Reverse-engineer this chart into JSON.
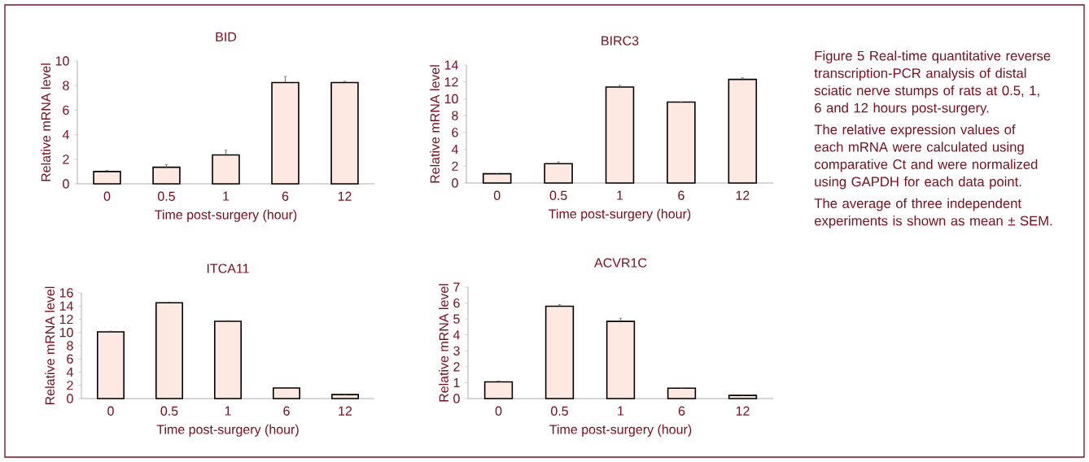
{
  "chart_data": [
    {
      "type": "bar",
      "title": "BID",
      "xlabel": "Time post-surgery (hour)",
      "ylabel": "Relative mRNA level",
      "categories": [
        "0",
        "0.5",
        "1",
        "6",
        "12"
      ],
      "values": [
        1.0,
        1.35,
        2.35,
        8.25,
        8.25
      ],
      "errors": [
        0.1,
        0.2,
        0.4,
        0.5,
        0.1
      ],
      "color": "#fde9e1",
      "ylim": [
        0,
        10
      ],
      "yticks": [
        0,
        2,
        4,
        6,
        8,
        10
      ]
    },
    {
      "type": "bar",
      "title": "BIRC3",
      "xlabel": "Time post-surgery (hour)",
      "ylabel": "Relative mRNA level",
      "categories": [
        "0",
        "0.5",
        "1",
        "6",
        "12"
      ],
      "values": [
        1.1,
        2.3,
        11.4,
        9.6,
        12.3
      ],
      "errors": [
        null,
        0.2,
        0.2,
        null,
        0.2
      ],
      "color": "#fde9e1",
      "ylim": [
        0,
        14
      ],
      "yticks": [
        0,
        2,
        4,
        6,
        8,
        10,
        12,
        14
      ]
    },
    {
      "type": "bar",
      "title": "ITCA11",
      "xlabel": "Time post-surgery (hour)",
      "ylabel": "Relative mRNA level",
      "categories": [
        "0",
        "0.5",
        "1",
        "6",
        "12"
      ],
      "values": [
        10.1,
        14.5,
        11.7,
        1.6,
        0.6
      ],
      "errors": [
        0.1,
        0.1,
        0.1,
        null,
        null
      ],
      "color": "#fde9e1",
      "ylim": [
        0,
        16
      ],
      "yticks": [
        0,
        2,
        4,
        6,
        8,
        10,
        12,
        14,
        16
      ]
    },
    {
      "type": "bar",
      "title": "ACVR1C",
      "xlabel": "Time post-surgery (hour)",
      "ylabel": "Relative mRNA level",
      "categories": [
        "0",
        "0.5",
        "1",
        "6",
        "12"
      ],
      "values": [
        1.05,
        5.8,
        4.85,
        0.65,
        0.2
      ],
      "errors": [
        0.05,
        0.1,
        0.2,
        null,
        null
      ],
      "color": "#fde9e1",
      "ylim": [
        0,
        7
      ],
      "yticks": [
        0,
        1,
        2,
        3,
        4,
        5,
        6,
        7
      ]
    },
    {
      "type": "other",
      "annotations": [
        "Figure 5    Real-time quantitative reverse transcription-PCR analysis of distal sciatic nerve stumps of rats at 0.5, 1, 6 and 12 hours post-surgery.",
        "The relative expression values of each mRNA were calculated using comparative Ct and were normalized using GAPDH for each data point.",
        "The average of three independent experiments is shown as mean ± SEM."
      ]
    }
  ]
}
